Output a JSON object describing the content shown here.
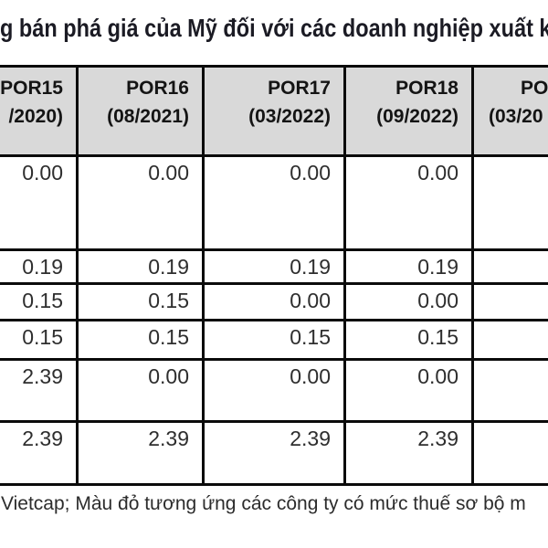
{
  "title": "g bán phá giá của Mỹ đối với các doanh nghiệp xuất k",
  "caption": "Vietcap; Màu đỏ tương ứng các công ty có mức thuế sơ bộ m",
  "table": {
    "header": [
      {
        "line1": "POR15",
        "line2": "/2020)"
      },
      {
        "line1": "POR16",
        "line2": "(08/2021)"
      },
      {
        "line1": "POR17",
        "line2": "(03/2022)"
      },
      {
        "line1": "POR18",
        "line2": "(09/2022)"
      },
      {
        "line1": "PO",
        "line2": "(03/20"
      }
    ],
    "rows": [
      [
        "0.00",
        "0.00",
        "0.00",
        "0.00",
        ""
      ],
      [
        "0.19",
        "0.19",
        "0.19",
        "0.19",
        ""
      ],
      [
        "0.15",
        "0.15",
        "0.00",
        "0.00",
        ""
      ],
      [
        "0.15",
        "0.15",
        "0.15",
        "0.15",
        ""
      ],
      [
        "2.39",
        "0.00",
        "0.00",
        "0.00",
        ""
      ],
      [
        "2.39",
        "2.39",
        "2.39",
        "2.39",
        ""
      ]
    ]
  },
  "colors": {
    "header_bg": "#d9d9d9",
    "border": "#0b0b0b",
    "title_text": "#1b1b24",
    "cell_text": "#2e2e2e"
  },
  "chart_data": {
    "type": "table",
    "title": "g bán phá giá của Mỹ đối với các doanh nghiệp xuất k",
    "columns": [
      "POR15 (/2020)",
      "POR16 (08/2021)",
      "POR17 (03/2022)",
      "POR18 (09/2022)",
      "PO (03/20"
    ],
    "rows": [
      [
        0.0,
        0.0,
        0.0,
        0.0,
        null
      ],
      [
        0.19,
        0.19,
        0.19,
        0.19,
        null
      ],
      [
        0.15,
        0.15,
        0.0,
        0.0,
        null
      ],
      [
        0.15,
        0.15,
        0.15,
        0.15,
        null
      ],
      [
        2.39,
        0.0,
        0.0,
        0.0,
        null
      ],
      [
        2.39,
        2.39,
        2.39,
        2.39,
        null
      ]
    ],
    "caption": "Vietcap; Màu đỏ tương ứng các công ty có mức thuế sơ bộ m",
    "layout_hints": "cropped figure: leftmost company-name column and rightmost POR column are cut off at image edges; header row gray; values right-aligned; black 3px grid borders"
  }
}
